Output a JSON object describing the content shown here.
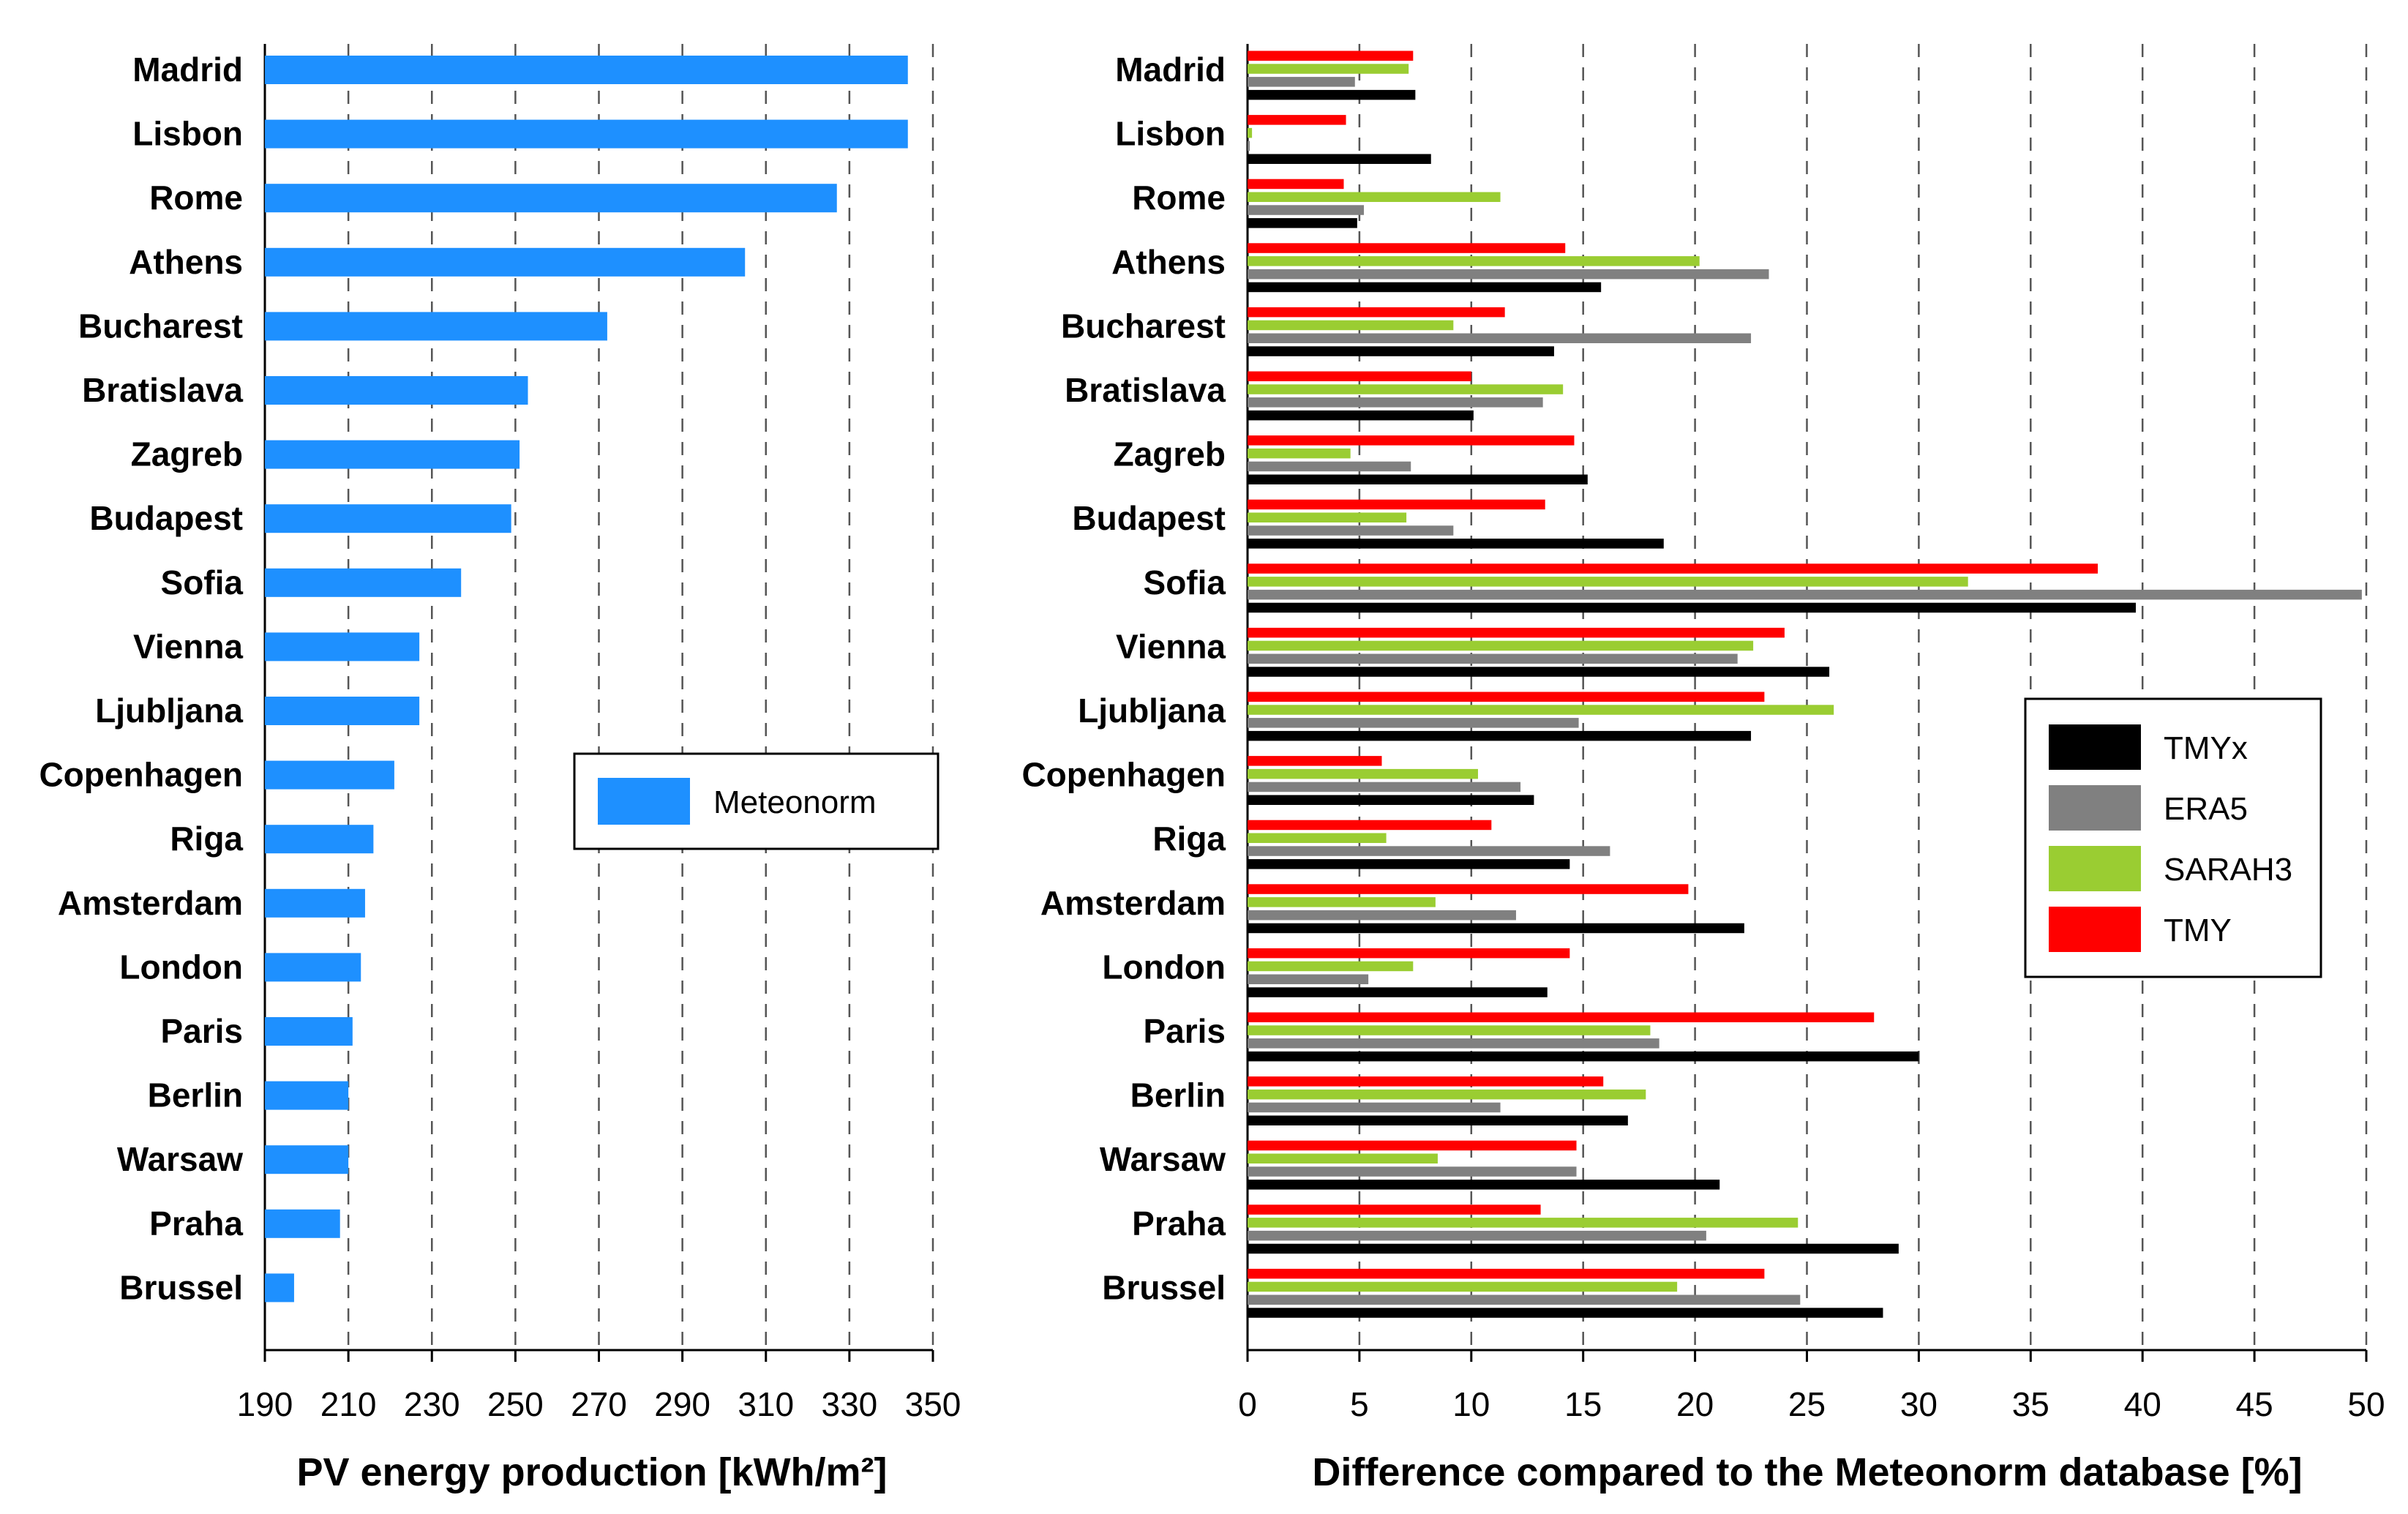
{
  "chart_data": [
    {
      "type": "bar",
      "orientation": "horizontal",
      "categories": [
        "Madrid",
        "Lisbon",
        "Rome",
        "Athens",
        "Bucharest",
        "Bratislava",
        "Zagreb",
        "Budapest",
        "Sofia",
        "Vienna",
        "Ljubljana",
        "Copenhagen",
        "Riga",
        "Amsterdam",
        "London",
        "Paris",
        "Berlin",
        "Warsaw",
        "Praha",
        "Brussel"
      ],
      "series": [
        {
          "name": "Meteonorm",
          "color": "#1E90FF",
          "values": [
            344,
            344,
            327,
            305,
            272,
            253,
            251,
            249,
            237,
            227,
            227,
            221,
            216,
            214,
            213,
            211,
            210,
            210,
            208,
            197
          ]
        }
      ],
      "xlabel": "PV energy production [kWh/m²]",
      "xlim": [
        190,
        350
      ],
      "xticks": [
        "190",
        "210",
        "230",
        "250",
        "270",
        "290",
        "310",
        "330",
        "350"
      ],
      "grid": "vertical dashed",
      "legend": {
        "placement": "right-middle",
        "entries": [
          "Meteonorm"
        ]
      }
    },
    {
      "type": "bar",
      "orientation": "horizontal",
      "categories": [
        "Madrid",
        "Lisbon",
        "Rome",
        "Athens",
        "Bucharest",
        "Bratislava",
        "Zagreb",
        "Budapest",
        "Sofia",
        "Vienna",
        "Ljubljana",
        "Copenhagen",
        "Riga",
        "Amsterdam",
        "London",
        "Paris",
        "Berlin",
        "Warsaw",
        "Praha",
        "Brussel"
      ],
      "series": [
        {
          "name": "TMY",
          "color": "#FF0000",
          "values": [
            7.4,
            4.4,
            4.3,
            14.2,
            11.5,
            10.0,
            14.6,
            13.3,
            38.0,
            24.0,
            23.1,
            6.0,
            10.9,
            19.7,
            14.4,
            28.0,
            15.9,
            14.7,
            13.1,
            23.1
          ]
        },
        {
          "name": "SARAH3",
          "color": "#9ACD32",
          "values": [
            7.2,
            0.2,
            11.3,
            20.2,
            9.2,
            14.1,
            4.6,
            7.1,
            32.2,
            22.6,
            26.2,
            10.3,
            6.2,
            8.4,
            7.4,
            18.0,
            17.8,
            8.5,
            24.6,
            19.2
          ]
        },
        {
          "name": "ERA5",
          "color": "#808080",
          "values": [
            4.8,
            0.1,
            5.2,
            23.3,
            22.5,
            13.2,
            7.3,
            9.2,
            49.8,
            21.9,
            14.8,
            12.2,
            16.2,
            12.0,
            5.4,
            18.4,
            11.3,
            14.7,
            20.5,
            24.7
          ]
        },
        {
          "name": "TMYx",
          "color": "#000000",
          "values": [
            7.5,
            8.2,
            4.9,
            15.8,
            13.7,
            10.1,
            15.2,
            18.6,
            39.7,
            26.0,
            22.5,
            12.8,
            14.4,
            22.2,
            13.4,
            30.0,
            17.0,
            21.1,
            29.1,
            28.4
          ]
        }
      ],
      "xlabel": "Difference compared to the Meteonorm database [%]",
      "xlim": [
        0,
        50
      ],
      "xticks": [
        "0",
        "5",
        "10",
        "15",
        "20",
        "25",
        "30",
        "35",
        "40",
        "45",
        "50"
      ],
      "grid": "vertical dashed",
      "legend": {
        "placement": "right-middle",
        "entries": [
          "TMYx",
          "ERA5",
          "SARAH3",
          "TMY"
        ]
      }
    }
  ]
}
